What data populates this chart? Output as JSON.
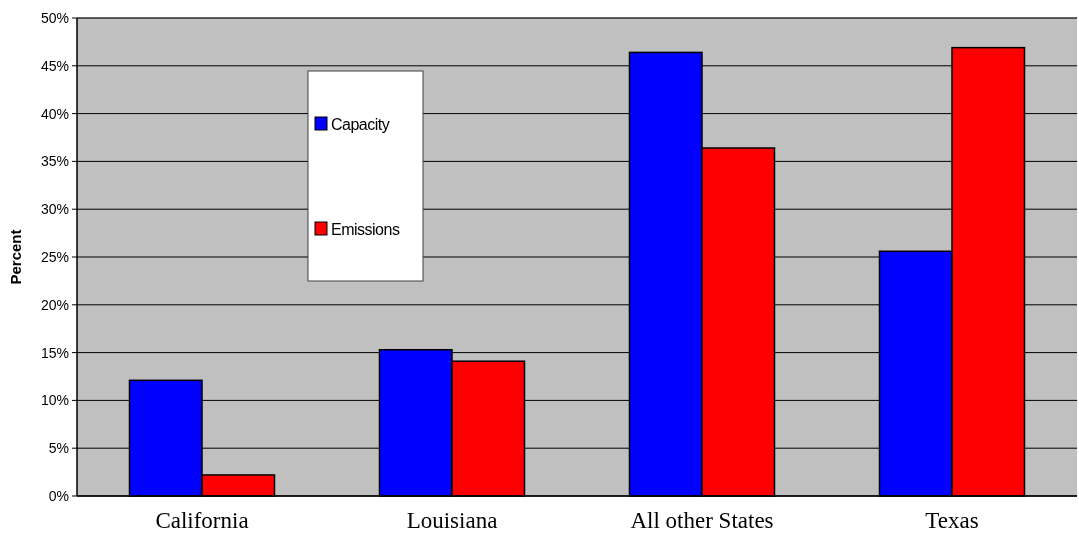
{
  "chart_data": {
    "type": "bar",
    "ylabel": "Percent",
    "categories": [
      "California",
      "Louisiana",
      "All other States",
      "Texas"
    ],
    "series": [
      {
        "name": "Capacity",
        "color": "#0000ff",
        "values": [
          12.1,
          15.3,
          46.4,
          25.6
        ]
      },
      {
        "name": "Emissions",
        "color": "#ff0000",
        "values": [
          2.2,
          14.1,
          36.4,
          46.9
        ]
      }
    ],
    "ylim": [
      0,
      50
    ],
    "yticks": [
      {
        "value": 0,
        "label": "0%"
      },
      {
        "value": 5,
        "label": "5%"
      },
      {
        "value": 10,
        "label": "10%"
      },
      {
        "value": 15,
        "label": "15%"
      },
      {
        "value": 20,
        "label": "20%"
      },
      {
        "value": 25,
        "label": "25%"
      },
      {
        "value": 30,
        "label": "30%"
      },
      {
        "value": 35,
        "label": "35%"
      },
      {
        "value": 40,
        "label": "40%"
      },
      {
        "value": 45,
        "label": "45%"
      },
      {
        "value": 50,
        "label": "50%"
      }
    ],
    "grid": "y",
    "legend": "top"
  }
}
